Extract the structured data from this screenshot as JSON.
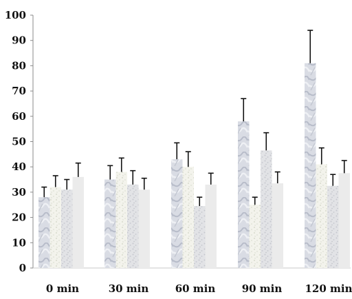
{
  "chart_data": {
    "type": "bar",
    "title": "",
    "xlabel": "",
    "ylabel": "",
    "ylim": [
      0,
      100
    ],
    "yticks": [
      0,
      10,
      20,
      30,
      40,
      50,
      60,
      70,
      80,
      90,
      100
    ],
    "categories": [
      "0 min",
      "30 min",
      "60 min",
      "90 min",
      "120 min"
    ],
    "grid": false,
    "legend": "none",
    "series": [
      {
        "pattern": "marble",
        "fill": "#dcdfe6",
        "values": [
          28,
          35,
          43,
          58,
          81
        ],
        "errors": [
          4,
          5.5,
          6.5,
          9,
          13
        ]
      },
      {
        "pattern": "speckle-light",
        "fill": "#f2f2ea",
        "values": [
          32,
          38,
          40,
          25,
          41
        ],
        "errors": [
          4.5,
          5.5,
          6,
          3,
          6.5
        ]
      },
      {
        "pattern": "speckle-gray",
        "fill": "#e3e4e6",
        "values": [
          31,
          33,
          24.5,
          46.5,
          32.5
        ],
        "errors": [
          4,
          5.5,
          3.5,
          7,
          4.5
        ]
      },
      {
        "pattern": "solid-light",
        "fill": "#ececec",
        "values": [
          36,
          31,
          33,
          33.5,
          37.5
        ],
        "errors": [
          5.5,
          4.5,
          4.5,
          4.5,
          5
        ]
      }
    ],
    "error_bar_color": "#111111",
    "axis_color": "#8a8a8a"
  }
}
